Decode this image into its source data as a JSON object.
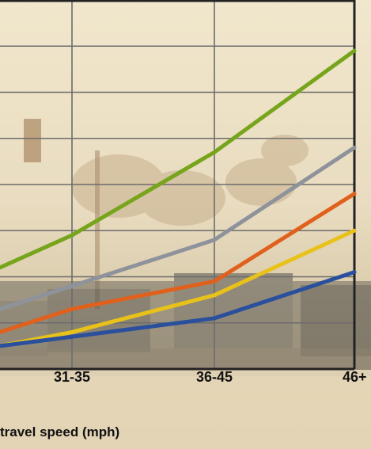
{
  "chart_data": {
    "type": "line",
    "title": "",
    "xlabel": "travel speed (mph)",
    "ylabel": "",
    "categories": [
      "",
      "31-35",
      "36-45",
      "46+"
    ],
    "ylim": [
      0,
      8
    ],
    "grid": true,
    "legend": "none",
    "series": [
      {
        "color": "#76a51c",
        "values": [
          2.2,
          2.9,
          4.7,
          6.9
        ]
      },
      {
        "color": "#8e939b",
        "values": [
          1.3,
          1.8,
          2.8,
          4.8
        ]
      },
      {
        "color": "#e0601c",
        "values": [
          0.8,
          1.3,
          1.9,
          3.8
        ]
      },
      {
        "color": "#e8c21a",
        "values": [
          0.5,
          0.8,
          1.6,
          3.0
        ]
      },
      {
        "color": "#2a4f9c",
        "values": [
          0.5,
          0.7,
          1.1,
          2.1
        ]
      }
    ]
  },
  "colors": {
    "grid": "#6c6c6c",
    "frame": "#222222"
  }
}
